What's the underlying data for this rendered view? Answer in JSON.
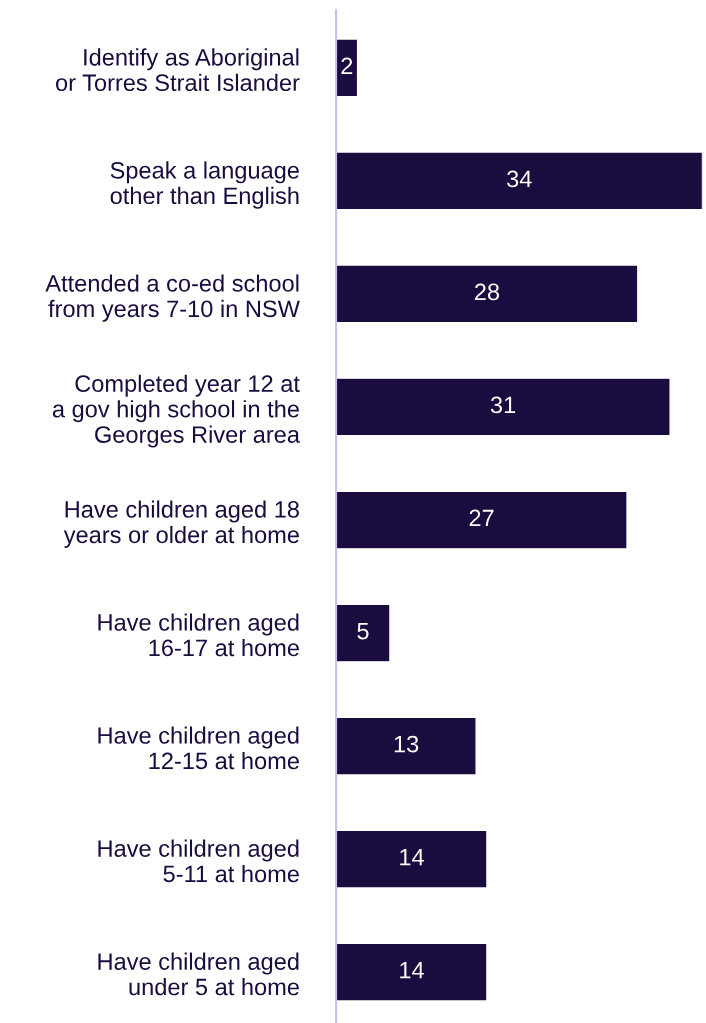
{
  "chart_data": {
    "type": "bar",
    "orientation": "horizontal",
    "categories": [
      "Identify as Aboriginal\nor Torres Strait Islander",
      "Speak a language\nother than English",
      "Attended a co-ed school\nfrom years 7-10 in NSW",
      "Completed year 12 at\na gov high school in the\nGeorges River area",
      "Have children aged 18\nyears or older at home",
      "Have children aged\n16-17 at home",
      "Have children aged\n12-15 at home",
      "Have children aged\n5-11 at home",
      "Have children aged\nunder 5 at home"
    ],
    "values": [
      2,
      34,
      28,
      31,
      27,
      5,
      13,
      14,
      14
    ],
    "color": "#1b0c3f",
    "data_labels": true,
    "grid": false,
    "legend": false
  }
}
